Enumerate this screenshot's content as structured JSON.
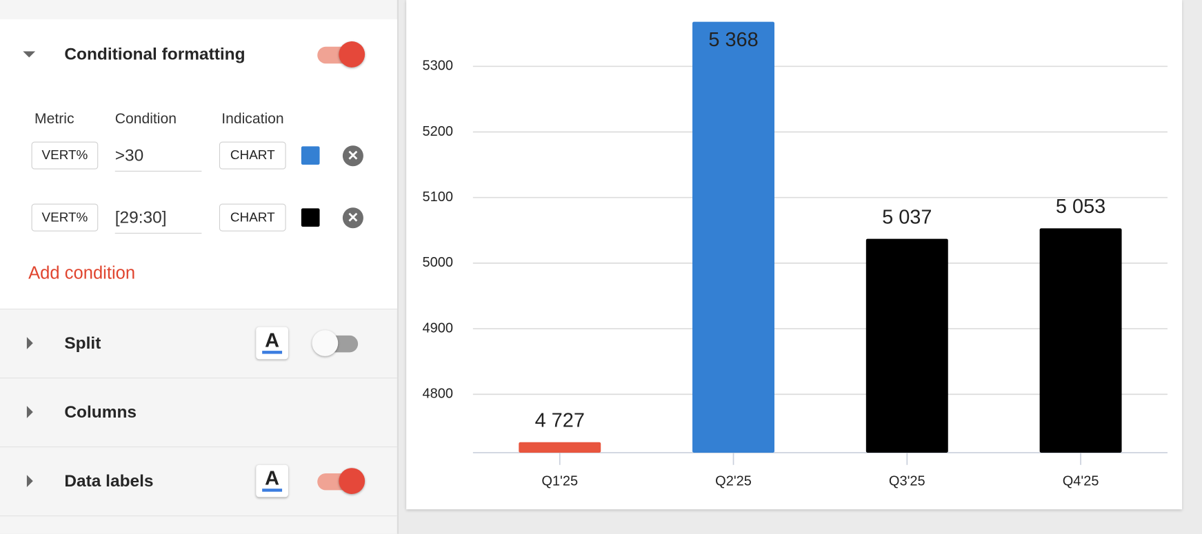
{
  "panel": {
    "conditional_formatting": {
      "title": "Conditional formatting",
      "enabled": true,
      "headers": [
        "Metric",
        "Condition",
        "Indication"
      ],
      "rows": [
        {
          "metric": "VERT%",
          "condition": ">30",
          "indication": "CHART",
          "color": "#3480d3"
        },
        {
          "metric": "VERT%",
          "condition": "[29:30]",
          "indication": "CHART",
          "color": "#000000"
        }
      ],
      "add_label": "Add condition"
    },
    "sections": [
      {
        "title": "Split",
        "text_icon": "A",
        "enabled": false
      },
      {
        "title": "Columns"
      },
      {
        "title": "Data labels",
        "text_icon": "A",
        "enabled": true
      }
    ]
  },
  "chart_data": {
    "type": "bar",
    "categories": [
      "Q1'25",
      "Q2'25",
      "Q3'25",
      "Q4'25"
    ],
    "values": [
      4727,
      5368,
      5037,
      5053
    ],
    "value_labels": [
      "4 727",
      "5 368",
      "5 037",
      "5 053"
    ],
    "colors": [
      "#e8553e",
      "#3480d3",
      "#000000",
      "#000000"
    ],
    "ylim": [
      4711,
      5400
    ],
    "yticks": [
      4800,
      4900,
      5000,
      5100,
      5200,
      5300
    ],
    "grid": true
  }
}
